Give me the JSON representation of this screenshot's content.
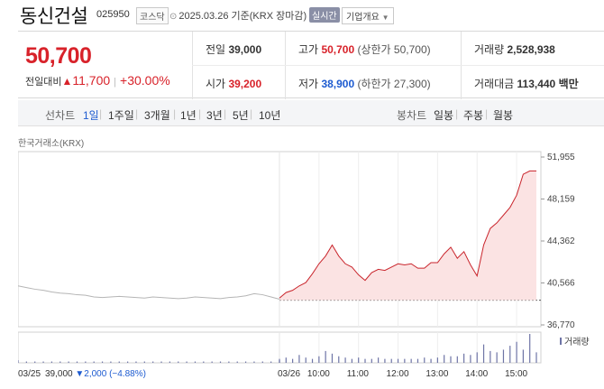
{
  "header": {
    "name": "동신건설",
    "code": "025950",
    "market": "코스닥",
    "date": "2025.03.26",
    "basis": "기준(KRX 장마감)",
    "realtime_label": "실시간",
    "company_label": "기업개요"
  },
  "summary": {
    "price": "50,700",
    "change_label": "전일대비",
    "change_value": "11,700",
    "change_rate": "+30.00%",
    "prev_label": "전일",
    "prev_value": "39,000",
    "open_label": "시가",
    "open_value": "39,200",
    "high_label": "고가",
    "high_value": "50,700",
    "upper_limit": "(상한가 50,700)",
    "low_label": "저가",
    "low_value": "38,900",
    "lower_limit": "(하한가 27,300)",
    "volume_label": "거래량",
    "volume_value": "2,528,938",
    "amount_label": "거래대금",
    "amount_value": "113,440",
    "amount_unit": "백만"
  },
  "periodbar": {
    "line_label": "선차트",
    "line_items": [
      "1일",
      "1주일",
      "3개월",
      "1년",
      "3년",
      "5년",
      "10년"
    ],
    "line_active": "1일",
    "candle_label": "봉차트",
    "candle_items": [
      "일봉",
      "주봉",
      "월봉"
    ]
  },
  "chart_source": "한국거래소(KRX)",
  "volume_legend": "거래량",
  "prev_day_info": {
    "date": "03/25",
    "price": "39,000",
    "change": "2,000",
    "rate": "(−4.88%)"
  },
  "colors": {
    "up": "#d8222a",
    "down": "#1d5bd0",
    "today_line": "#c9252c",
    "today_fill": "#fbe3e3",
    "prev_line": "#b5b5b5",
    "volume": "#6e74a6"
  },
  "chart_data": {
    "type": "line",
    "ylim": [
      36770,
      51955
    ],
    "yticks": [
      "51,955",
      "48,159",
      "44,362",
      "40,566",
      "36,770"
    ],
    "baseline": 39000,
    "day_labels": [
      "03/25",
      "03/26"
    ],
    "x_ticks": [
      "10:00",
      "11:00",
      "12:00",
      "13:00",
      "14:00",
      "15:00"
    ],
    "series": [
      {
        "day": "03/25",
        "values": [
          40300,
          40150,
          40000,
          39900,
          39750,
          39650,
          39600,
          39500,
          39450,
          39300,
          39250,
          39300,
          39350,
          39300,
          39250,
          39200,
          39300,
          39250,
          39200,
          39150,
          39200,
          39300,
          39250,
          39200,
          39150,
          39250,
          39300,
          39400,
          39600,
          39500,
          39300,
          39100
        ]
      },
      {
        "day": "03/26",
        "times": [
          "09:00",
          "09:10",
          "09:20",
          "09:30",
          "09:40",
          "09:50",
          "10:00",
          "10:10",
          "10:20",
          "10:30",
          "10:40",
          "10:50",
          "11:00",
          "11:10",
          "11:20",
          "11:30",
          "11:40",
          "11:50",
          "12:00",
          "12:10",
          "12:20",
          "12:30",
          "12:40",
          "12:50",
          "13:00",
          "13:10",
          "13:20",
          "13:30",
          "13:40",
          "13:50",
          "14:00",
          "14:10",
          "14:20",
          "14:30",
          "14:40",
          "14:50",
          "15:00",
          "15:10",
          "15:20",
          "15:30"
        ],
        "values": [
          39200,
          39700,
          39900,
          40300,
          40600,
          41400,
          42300,
          43000,
          44000,
          43000,
          42300,
          42000,
          41300,
          40800,
          41500,
          41800,
          41700,
          42000,
          42300,
          42200,
          42300,
          41900,
          41900,
          42400,
          42400,
          43200,
          43800,
          42800,
          43400,
          42200,
          41200,
          44000,
          45500,
          46000,
          46700,
          47400,
          48500,
          50400,
          50700,
          50700
        ]
      }
    ],
    "volume": {
      "03/25": [
        2,
        1,
        1,
        1,
        1,
        1,
        1,
        1,
        1,
        1,
        1,
        1,
        1,
        1,
        1,
        1,
        1,
        1,
        1,
        1,
        1,
        1,
        1,
        1,
        1,
        1,
        1,
        1,
        1,
        1,
        1,
        2
      ],
      "03/26": [
        3,
        4,
        3,
        6,
        4,
        3,
        5,
        9,
        7,
        5,
        4,
        3,
        4,
        3,
        3,
        4,
        3,
        3,
        3,
        3,
        3,
        3,
        4,
        3,
        4,
        6,
        5,
        5,
        7,
        6,
        8,
        14,
        9,
        8,
        10,
        13,
        16,
        10,
        22,
        8
      ]
    }
  }
}
